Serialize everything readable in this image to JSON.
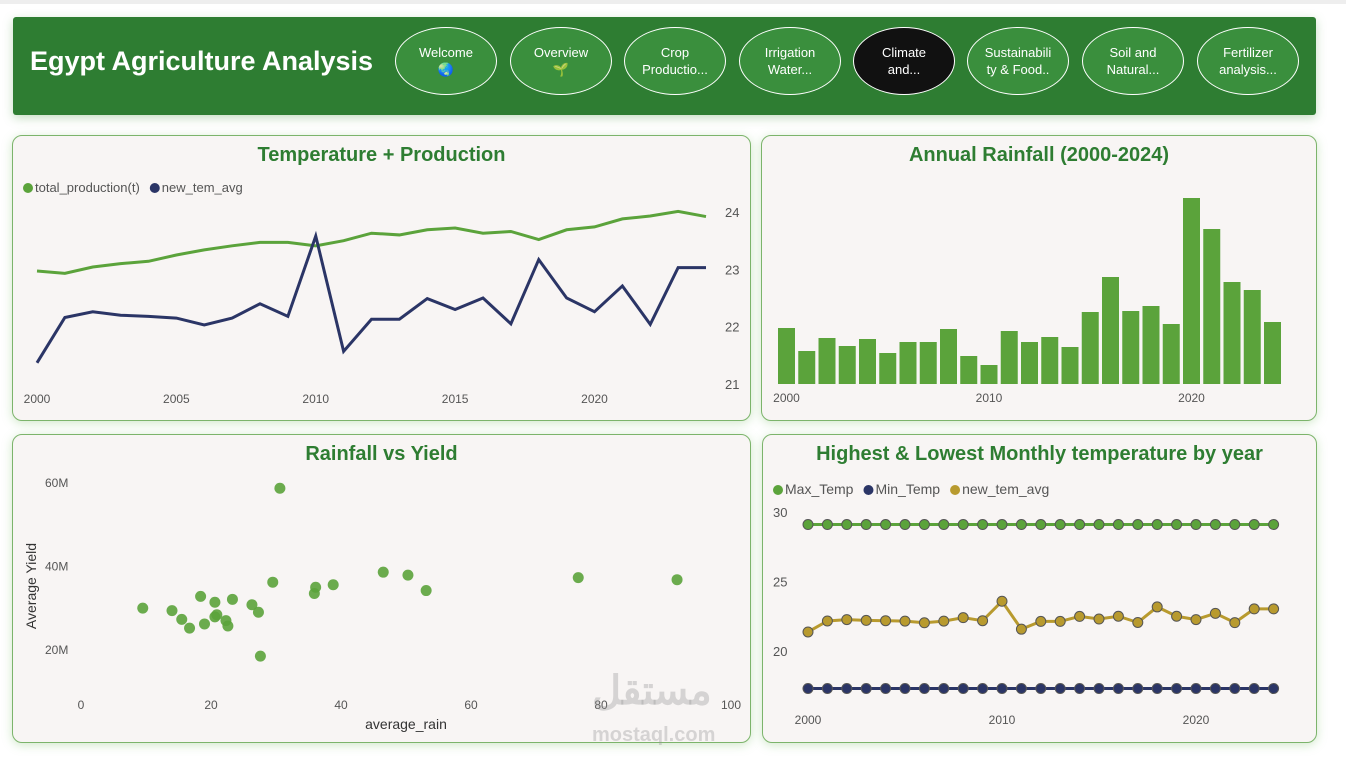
{
  "header": {
    "title": "Egypt Agriculture Analysis",
    "nav": [
      {
        "label": "Welcome",
        "icon": "🌏",
        "active": false
      },
      {
        "label": "Overview",
        "icon": "🌱",
        "active": false
      },
      {
        "label": "Crop Productio...",
        "active": false
      },
      {
        "label": "Irrigation Water...",
        "active": false
      },
      {
        "label": "Climate and...",
        "active": true
      },
      {
        "label": "Sustainabili ty & Food..",
        "active": false
      },
      {
        "label": "Soil and Natural...",
        "active": false
      },
      {
        "label": "Fertilizer analysis...",
        "active": false
      }
    ]
  },
  "colors": {
    "green": "#5ba33b",
    "navy": "#2b3566",
    "gold": "#b89a2e",
    "title": "#2e7d32"
  },
  "watermark": {
    "arabic": "مستقل",
    "latin": "mostaql.com"
  },
  "chart_data": [
    {
      "type": "line",
      "title": "Temperature + Production",
      "legend": [
        "total_production(t)",
        "new_tem_avg"
      ],
      "x": [
        2000,
        2001,
        2002,
        2003,
        2004,
        2005,
        2006,
        2007,
        2008,
        2009,
        2010,
        2011,
        2012,
        2013,
        2014,
        2015,
        2016,
        2017,
        2018,
        2019,
        2020,
        2021,
        2022,
        2023,
        2024
      ],
      "xticks": [
        "2000",
        "2005",
        "2010",
        "2015",
        "2020"
      ],
      "yticks": [
        "21",
        "22",
        "23",
        "24"
      ],
      "ylim": [
        21,
        24
      ],
      "series": [
        {
          "name": "total_production(t)",
          "values": [
            22.97,
            22.93,
            23.04,
            23.1,
            23.14,
            23.25,
            23.34,
            23.41,
            23.47,
            23.47,
            23.41,
            23.5,
            23.63,
            23.6,
            23.69,
            23.72,
            23.63,
            23.66,
            23.52,
            23.69,
            23.74,
            23.88,
            23.93,
            24.01,
            23.92
          ]
        },
        {
          "name": "new_tem_avg",
          "values": [
            21.37,
            22.16,
            22.26,
            22.2,
            22.18,
            22.15,
            22.03,
            22.15,
            22.4,
            22.18,
            23.58,
            21.57,
            22.13,
            22.13,
            22.49,
            22.3,
            22.5,
            22.05,
            23.17,
            22.5,
            22.26,
            22.71,
            22.04,
            23.03,
            23.03
          ]
        }
      ]
    },
    {
      "type": "bar",
      "title": "Annual Rainfall (2000-2024)",
      "categories": [
        2000,
        2001,
        2002,
        2003,
        2004,
        2005,
        2006,
        2007,
        2008,
        2009,
        2010,
        2011,
        2012,
        2013,
        2014,
        2015,
        2016,
        2017,
        2018,
        2019,
        2020,
        2021,
        2022,
        2023,
        2024
      ],
      "xticks": [
        "2000",
        "2010",
        "2020"
      ],
      "values": [
        56,
        33,
        46,
        38,
        45,
        31,
        42,
        42,
        55,
        28,
        19,
        53,
        42,
        47,
        37,
        72,
        107,
        73,
        78,
        60,
        186,
        155,
        102,
        94,
        62
      ]
    },
    {
      "type": "scatter",
      "title": "Rainfall vs Yield",
      "xlabel": "average_rain",
      "ylabel": "Average Yield",
      "xticks": [
        "0",
        "20",
        "40",
        "60",
        "80",
        "100"
      ],
      "yticks": [
        "20M",
        "40M",
        "60M"
      ],
      "xlim": [
        0,
        100
      ],
      "ylim_millions": [
        20,
        60
      ],
      "points": [
        [
          9.5,
          29.8
        ],
        [
          14.0,
          29.2
        ],
        [
          15.5,
          27.1
        ],
        [
          16.7,
          25.0
        ],
        [
          18.4,
          32.6
        ],
        [
          19.0,
          26.0
        ],
        [
          20.6,
          31.2
        ],
        [
          20.6,
          27.7
        ],
        [
          20.9,
          28.2
        ],
        [
          22.3,
          26.8
        ],
        [
          22.6,
          25.5
        ],
        [
          23.3,
          31.9
        ],
        [
          26.3,
          30.6
        ],
        [
          27.3,
          28.8
        ],
        [
          27.6,
          18.3
        ],
        [
          29.5,
          36.0
        ],
        [
          30.6,
          58.5
        ],
        [
          35.9,
          33.3
        ],
        [
          36.1,
          34.8
        ],
        [
          38.8,
          35.4
        ],
        [
          46.5,
          38.4
        ],
        [
          50.3,
          37.7
        ],
        [
          53.1,
          34.0
        ],
        [
          76.5,
          37.1
        ],
        [
          91.7,
          36.6
        ]
      ]
    },
    {
      "type": "line",
      "title": "Highest & Lowest Monthly temperature by year",
      "legend": [
        "Max_Temp",
        "Min_Temp",
        "new_tem_avg"
      ],
      "xticks": [
        "2000",
        "2010",
        "2020"
      ],
      "yticks": [
        "20",
        "25",
        "30"
      ],
      "series": [
        {
          "name": "Max_Temp",
          "values": [
            29.1,
            29.1,
            29.1,
            29.1,
            29.1,
            29.1,
            29.1,
            29.1,
            29.1,
            29.1,
            29.1,
            29.1,
            29.1,
            29.1,
            29.1,
            29.1,
            29.1,
            29.1,
            29.1,
            29.1,
            29.1,
            29.1,
            29.1,
            29.1,
            29.1
          ]
        },
        {
          "name": "Min_Temp",
          "values": [
            17.3,
            17.3,
            17.3,
            17.3,
            17.3,
            17.3,
            17.3,
            17.3,
            17.3,
            17.3,
            17.3,
            17.3,
            17.3,
            17.3,
            17.3,
            17.3,
            17.3,
            17.3,
            17.3,
            17.3,
            17.3,
            17.3,
            17.3,
            17.3,
            17.3
          ]
        },
        {
          "name": "new_tem_avg",
          "values": [
            21.37,
            22.16,
            22.26,
            22.2,
            22.18,
            22.15,
            22.03,
            22.15,
            22.4,
            22.18,
            23.58,
            21.57,
            22.13,
            22.13,
            22.49,
            22.3,
            22.5,
            22.05,
            23.17,
            22.5,
            22.26,
            22.71,
            22.04,
            23.03,
            23.03
          ]
        }
      ]
    }
  ]
}
